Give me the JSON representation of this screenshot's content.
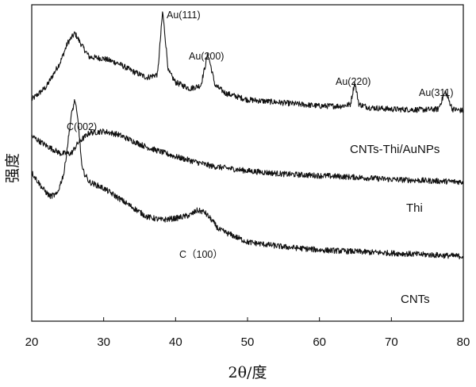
{
  "chart_data": {
    "type": "line",
    "title": "",
    "xlabel": "2θ/度",
    "ylabel": "强度",
    "xlim": [
      20,
      80
    ],
    "xticks": [
      20,
      30,
      40,
      50,
      60,
      70,
      80
    ],
    "y_ticks_shown": false,
    "grid": false,
    "legend": "none",
    "line_color": "#111111",
    "series": [
      {
        "name": "CNTs-Thi/AuNPs",
        "x": [
          20,
          22,
          24,
          25,
          26,
          27,
          28,
          30,
          32,
          34,
          36,
          37.5,
          38.2,
          39,
          40,
          42,
          43.5,
          44.5,
          45.5,
          47,
          50,
          55,
          60,
          63,
          64.3,
          64.9,
          65.5,
          67,
          70,
          74,
          76.5,
          77.5,
          78.5,
          80
        ],
        "values": [
          0.7,
          0.74,
          0.82,
          0.88,
          0.91,
          0.87,
          0.835,
          0.83,
          0.815,
          0.79,
          0.77,
          0.78,
          0.98,
          0.79,
          0.755,
          0.735,
          0.745,
          0.845,
          0.745,
          0.72,
          0.7,
          0.69,
          0.68,
          0.68,
          0.685,
          0.755,
          0.685,
          0.675,
          0.67,
          0.668,
          0.67,
          0.725,
          0.67,
          0.665
        ]
      },
      {
        "name": "Thi",
        "x": [
          20,
          22,
          24,
          25.5,
          26.5,
          28,
          30,
          32,
          34,
          36,
          40,
          45,
          50,
          55,
          60,
          65,
          70,
          75,
          80
        ],
        "values": [
          0.585,
          0.555,
          0.53,
          0.53,
          0.565,
          0.595,
          0.6,
          0.59,
          0.57,
          0.55,
          0.52,
          0.49,
          0.475,
          0.465,
          0.46,
          0.455,
          0.448,
          0.444,
          0.44
        ]
      },
      {
        "name": "CNTs",
        "x": [
          20,
          21.5,
          22.5,
          23.5,
          24.5,
          25.5,
          26,
          26.5,
          27,
          28,
          30,
          32,
          34,
          36,
          38,
          40,
          42,
          43,
          44,
          45,
          46,
          48,
          50,
          55,
          60,
          65,
          70,
          75,
          80
        ],
        "values": [
          0.47,
          0.42,
          0.395,
          0.4,
          0.47,
          0.65,
          0.7,
          0.62,
          0.48,
          0.44,
          0.42,
          0.39,
          0.36,
          0.33,
          0.32,
          0.325,
          0.335,
          0.35,
          0.345,
          0.32,
          0.29,
          0.27,
          0.25,
          0.235,
          0.225,
          0.22,
          0.215,
          0.21,
          0.205
        ]
      }
    ],
    "annotations": {
      "au111": "Au(111)",
      "au200": "Au(200)",
      "au220": "Au(220)",
      "au311": "Au(311)",
      "c002": "C(002)",
      "c100": "C（100）",
      "label_cnts_thi_aunps": "CNTs-Thi/AuNPs",
      "label_thi": "Thi",
      "label_cnts": "CNTs"
    }
  }
}
